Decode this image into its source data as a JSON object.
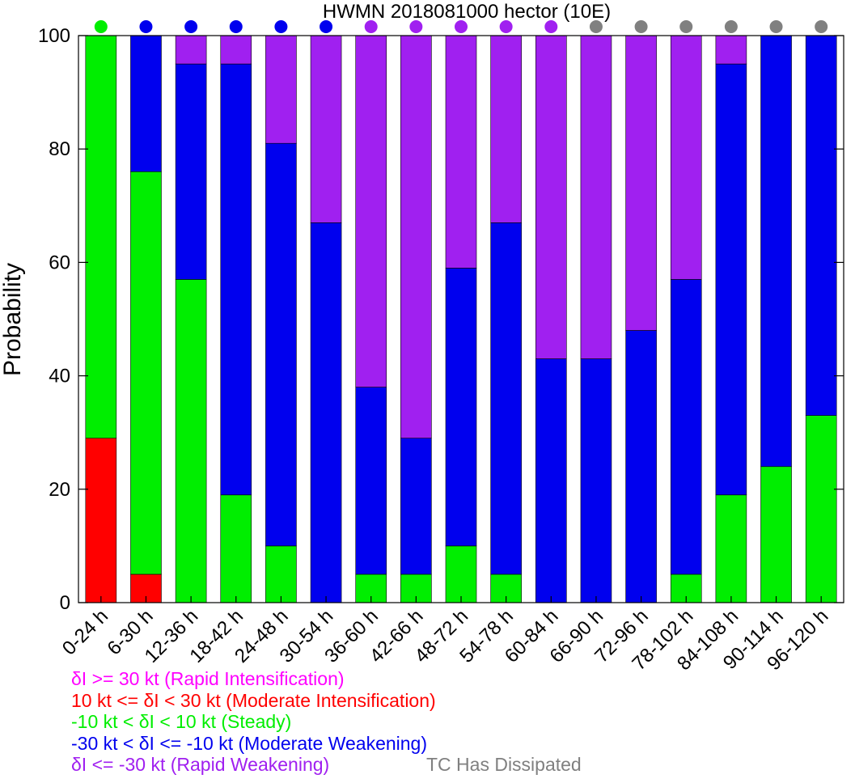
{
  "chart_data": {
    "type": "bar",
    "stacked": true,
    "title": "HWMN 2018081000 hector (10E)",
    "xlabel": "",
    "ylabel": "Probability",
    "ylim": [
      0,
      100
    ],
    "yticks": [
      0,
      20,
      40,
      60,
      80,
      100
    ],
    "grid": false,
    "categories": [
      "0-24 h",
      "6-30 h",
      "12-36 h",
      "18-42 h",
      "24-48 h",
      "30-54 h",
      "36-60 h",
      "42-66 h",
      "48-72 h",
      "54-78 h",
      "60-84 h",
      "66-90 h",
      "72-96 h",
      "78-102 h",
      "84-108 h",
      "90-114 h",
      "96-120 h"
    ],
    "series": [
      {
        "name": "δI >= 30 kt (Rapid Intensification)",
        "color": "#ff00ff",
        "values": [
          0,
          0,
          0,
          0,
          0,
          0,
          0,
          0,
          0,
          0,
          0,
          0,
          0,
          0,
          0,
          0,
          0
        ]
      },
      {
        "name": "10 kt <= δI < 30 kt (Moderate Intensification)",
        "color": "#ff0000",
        "values": [
          29,
          5,
          0,
          0,
          0,
          0,
          0,
          0,
          0,
          0,
          0,
          0,
          0,
          0,
          0,
          0,
          0
        ]
      },
      {
        "name": "-10 kt < δI < 10 kt (Steady)",
        "color": "#00ee00",
        "values": [
          71,
          71,
          57,
          19,
          10,
          0,
          5,
          5,
          10,
          5,
          0,
          0,
          0,
          5,
          19,
          24,
          33
        ]
      },
      {
        "name": "-30 kt < δI <= -10 kt (Moderate Weakening)",
        "color": "#0000ee",
        "values": [
          0,
          24,
          38,
          76,
          71,
          67,
          33,
          24,
          49,
          62,
          43,
          43,
          48,
          52,
          76,
          76,
          67
        ]
      },
      {
        "name": "δI <= -30 kt (Rapid Weakening)",
        "color": "#a020f0",
        "values": [
          0,
          0,
          5,
          5,
          19,
          33,
          62,
          71,
          41,
          33,
          57,
          57,
          52,
          43,
          5,
          0,
          0
        ]
      }
    ],
    "category_markers": [
      "Steady",
      "Moderate Weakening",
      "Moderate Weakening",
      "Moderate Weakening",
      "Moderate Weakening",
      "Moderate Weakening",
      "Rapid Weakening",
      "Rapid Weakening",
      "Rapid Weakening",
      "Rapid Weakening",
      "Rapid Weakening",
      "TC Has Dissipated",
      "TC Has Dissipated",
      "TC Has Dissipated",
      "TC Has Dissipated",
      "TC Has Dissipated",
      "TC Has Dissipated"
    ],
    "dissipated": {
      "label": "TC Has Dissipated",
      "color": "#808080"
    }
  }
}
